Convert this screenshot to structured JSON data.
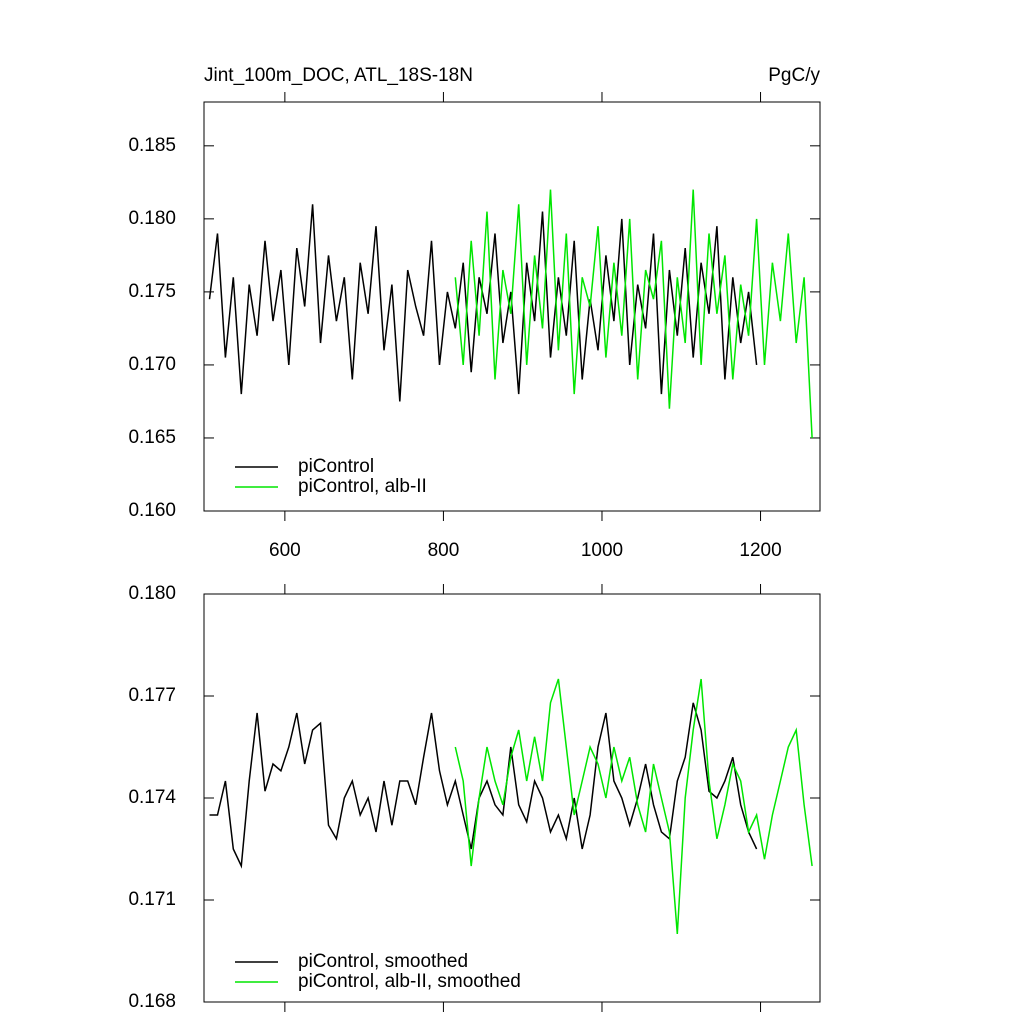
{
  "chart_data": [
    {
      "type": "line",
      "title": "Jint_100m_DOC, ATL_18S-18N",
      "units": "PgC/y",
      "xlim": [
        498,
        1275
      ],
      "xticks": [
        600,
        800,
        1000,
        1200
      ],
      "ylim": [
        0.16,
        0.188
      ],
      "yticks": [
        {
          "value": 0.16,
          "label": "0.160"
        },
        0.165,
        {
          "value": 0.17,
          "label": "0.170"
        },
        0.175,
        {
          "value": 0.18,
          "label": "0.180"
        },
        0.185
      ],
      "series": [
        {
          "name": "piControl",
          "color": "#000000",
          "x": [
            505,
            515,
            525,
            535,
            545,
            555,
            565,
            575,
            585,
            595,
            605,
            615,
            625,
            635,
            645,
            655,
            665,
            675,
            685,
            695,
            705,
            715,
            725,
            735,
            745,
            755,
            765,
            775,
            785,
            795,
            805,
            815,
            825,
            835,
            845,
            855,
            865,
            875,
            885,
            895,
            905,
            915,
            925,
            935,
            945,
            955,
            965,
            975,
            985,
            995,
            1005,
            1015,
            1025,
            1035,
            1045,
            1055,
            1065,
            1075,
            1085,
            1095,
            1105,
            1115,
            1125,
            1135,
            1145,
            1155,
            1165,
            1175,
            1185,
            1195
          ],
          "values": [
            0.1745,
            0.179,
            0.1705,
            0.176,
            0.168,
            0.1755,
            0.172,
            0.1785,
            0.173,
            0.1765,
            0.17,
            0.178,
            0.174,
            0.181,
            0.1715,
            0.1775,
            0.173,
            0.176,
            0.169,
            0.177,
            0.1735,
            0.1795,
            0.171,
            0.1755,
            0.1675,
            0.1765,
            0.174,
            0.172,
            0.1785,
            0.17,
            0.175,
            0.1725,
            0.177,
            0.1695,
            0.176,
            0.1735,
            0.179,
            0.1715,
            0.175,
            0.168,
            0.177,
            0.173,
            0.1805,
            0.1705,
            0.176,
            0.172,
            0.1785,
            0.169,
            0.1745,
            0.171,
            0.1775,
            0.173,
            0.18,
            0.17,
            0.1755,
            0.1725,
            0.179,
            0.168,
            0.1765,
            0.172,
            0.178,
            0.1705,
            0.177,
            0.1735,
            0.1795,
            0.169,
            0.176,
            0.1715,
            0.175,
            0.17
          ]
        },
        {
          "name": "piControl, alb-II",
          "color": "#00e600",
          "x": [
            815,
            825,
            835,
            845,
            855,
            865,
            875,
            885,
            895,
            905,
            915,
            925,
            935,
            945,
            955,
            965,
            975,
            985,
            995,
            1005,
            1015,
            1025,
            1035,
            1045,
            1055,
            1065,
            1075,
            1085,
            1095,
            1105,
            1115,
            1125,
            1135,
            1145,
            1155,
            1165,
            1175,
            1185,
            1195,
            1205,
            1215,
            1225,
            1235,
            1245,
            1255,
            1265
          ],
          "values": [
            0.176,
            0.17,
            0.1785,
            0.172,
            0.1805,
            0.169,
            0.1765,
            0.1735,
            0.181,
            0.17,
            0.1775,
            0.1725,
            0.182,
            0.171,
            0.179,
            0.168,
            0.176,
            0.174,
            0.1795,
            0.1705,
            0.177,
            0.172,
            0.18,
            0.169,
            0.1765,
            0.1745,
            0.1785,
            0.167,
            0.176,
            0.1715,
            0.182,
            0.17,
            0.179,
            0.1735,
            0.1775,
            0.169,
            0.1755,
            0.172,
            0.18,
            0.17,
            0.177,
            0.173,
            0.179,
            0.1715,
            0.176,
            0.165
          ]
        }
      ]
    },
    {
      "type": "line",
      "xlim": [
        498,
        1275
      ],
      "ylim": [
        0.168,
        0.18
      ],
      "yticks": [
        0.168,
        0.171,
        0.174,
        0.177,
        {
          "value": 0.18,
          "label": "0.180"
        }
      ],
      "series": [
        {
          "name": "piControl, smoothed",
          "color": "#000000",
          "x": [
            505,
            515,
            525,
            535,
            545,
            555,
            565,
            575,
            585,
            595,
            605,
            615,
            625,
            635,
            645,
            655,
            665,
            675,
            685,
            695,
            705,
            715,
            725,
            735,
            745,
            755,
            765,
            775,
            785,
            795,
            805,
            815,
            825,
            835,
            845,
            855,
            865,
            875,
            885,
            895,
            905,
            915,
            925,
            935,
            945,
            955,
            965,
            975,
            985,
            995,
            1005,
            1015,
            1025,
            1035,
            1045,
            1055,
            1065,
            1075,
            1085,
            1095,
            1105,
            1115,
            1125,
            1135,
            1145,
            1155,
            1165,
            1175,
            1185,
            1195
          ],
          "values": [
            0.1735,
            0.1735,
            0.1745,
            0.1725,
            0.172,
            0.1745,
            0.1765,
            0.1742,
            0.175,
            0.1748,
            0.1755,
            0.1765,
            0.175,
            0.176,
            0.1762,
            0.1732,
            0.1728,
            0.174,
            0.1745,
            0.1735,
            0.174,
            0.173,
            0.1745,
            0.1732,
            0.1745,
            0.1745,
            0.1738,
            0.1752,
            0.1765,
            0.1748,
            0.1738,
            0.1745,
            0.1735,
            0.1725,
            0.174,
            0.1745,
            0.1738,
            0.1735,
            0.1755,
            0.1738,
            0.1733,
            0.1745,
            0.174,
            0.173,
            0.1735,
            0.1728,
            0.174,
            0.1725,
            0.1735,
            0.1755,
            0.1765,
            0.1745,
            0.174,
            0.1732,
            0.174,
            0.175,
            0.1738,
            0.173,
            0.1728,
            0.1745,
            0.1752,
            0.1768,
            0.176,
            0.1742,
            0.174,
            0.1745,
            0.1752,
            0.1738,
            0.173,
            0.1725
          ]
        },
        {
          "name": "piControl, alb-II, smoothed",
          "color": "#00e600",
          "x": [
            815,
            825,
            835,
            845,
            855,
            865,
            875,
            885,
            895,
            905,
            915,
            925,
            935,
            945,
            955,
            965,
            975,
            985,
            995,
            1005,
            1015,
            1025,
            1035,
            1045,
            1055,
            1065,
            1075,
            1085,
            1095,
            1105,
            1115,
            1125,
            1135,
            1145,
            1155,
            1165,
            1175,
            1185,
            1195,
            1205,
            1215,
            1225,
            1235,
            1245,
            1255,
            1265
          ],
          "values": [
            0.1755,
            0.1745,
            0.172,
            0.174,
            0.1755,
            0.1745,
            0.1738,
            0.1752,
            0.176,
            0.1745,
            0.1758,
            0.1745,
            0.1768,
            0.1775,
            0.1755,
            0.1735,
            0.1745,
            0.1755,
            0.175,
            0.174,
            0.1755,
            0.1745,
            0.1752,
            0.1738,
            0.173,
            0.175,
            0.174,
            0.173,
            0.17,
            0.174,
            0.176,
            0.1775,
            0.1745,
            0.1728,
            0.1738,
            0.175,
            0.1745,
            0.173,
            0.1735,
            0.1722,
            0.1735,
            0.1745,
            0.1755,
            0.176,
            0.1738,
            0.172
          ]
        }
      ]
    }
  ]
}
